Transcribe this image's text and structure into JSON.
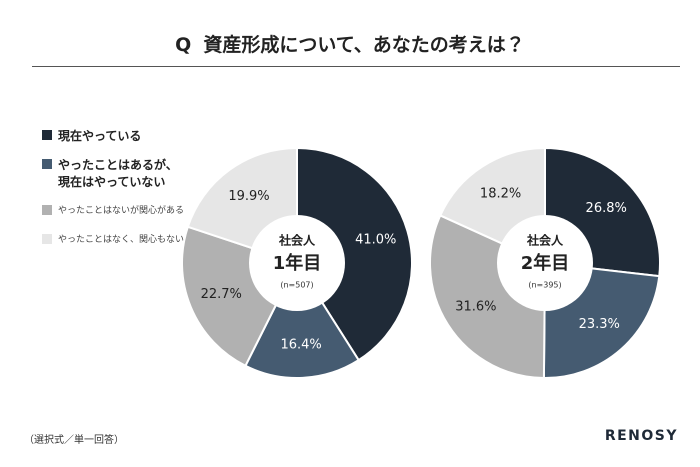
{
  "header": {
    "marker": "Q",
    "title": "資産形成について、あなたの考えは？"
  },
  "chart_data": [
    {
      "type": "pie",
      "subtitle": "社会人",
      "title": "1年目",
      "note": "(n=507)",
      "categories": [
        "現在やっている",
        "やったことはあるが、現在はやっていない",
        "やったことはないが関心がある",
        "やったことはなく、関心もない"
      ],
      "colors": [
        "#1f2a37",
        "#455b71",
        "#b1b1b1",
        "#e6e6e6"
      ],
      "values": [
        41.0,
        16.4,
        22.7,
        19.9
      ],
      "value_labels": [
        "41.0%",
        "16.4%",
        "22.7%",
        "19.9%"
      ]
    },
    {
      "type": "pie",
      "subtitle": "社会人",
      "title": "2年目",
      "note": "(n=395)",
      "categories": [
        "現在やっている",
        "やったことはあるが、現在はやっていない",
        "やったことはないが関心がある",
        "やったことはなく、関心もない"
      ],
      "colors": [
        "#1f2a37",
        "#455b71",
        "#b1b1b1",
        "#e6e6e6"
      ],
      "values": [
        26.8,
        23.3,
        31.6,
        18.2
      ],
      "value_labels": [
        "26.8%",
        "23.3%",
        "31.6%",
        "18.2%"
      ]
    }
  ],
  "footer": {
    "note": "（選択式／単一回答）",
    "brand": "RENOSY"
  }
}
